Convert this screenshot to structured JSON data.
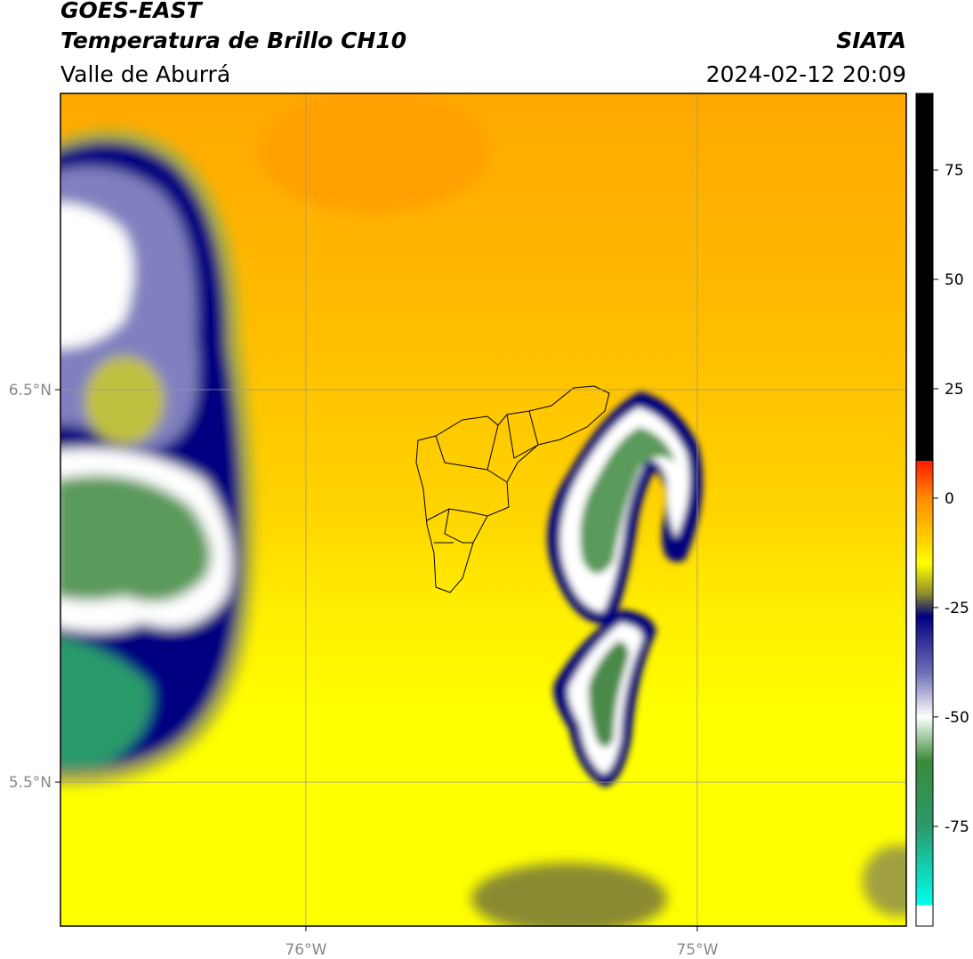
{
  "header": {
    "title": "GOES-EAST",
    "subtitle": "Temperatura de Brillo CH10",
    "source": "SIATA",
    "region": "Valle de Aburrá",
    "datetime": "2024-02-12 20:09"
  },
  "map": {
    "xlim": [
      -76.627,
      -74.466
    ],
    "ylim": [
      5.133,
      7.255
    ],
    "xticks": [
      {
        "value": -76,
        "label": "76°W"
      },
      {
        "value": -75,
        "label": "75°W"
      }
    ],
    "yticks": [
      {
        "value": 6.5,
        "label": "6.5°N"
      },
      {
        "value": 5.5,
        "label": "5.5°N"
      }
    ],
    "grid": true,
    "grid_color": "#999999"
  },
  "colorbar": {
    "lim": [
      -97.8,
      92.5
    ],
    "ticks": [
      75,
      50,
      25,
      0,
      -25,
      -50,
      -75
    ],
    "colormap": [
      {
        "value": 92.5,
        "color": "#000000"
      },
      {
        "value": 8.5,
        "color": "#000000"
      },
      {
        "value": 8.5,
        "color": "#ff1a00"
      },
      {
        "value": 0,
        "color": "#ff8c00"
      },
      {
        "value": -10,
        "color": "#ffd400"
      },
      {
        "value": -15,
        "color": "#ffff00"
      },
      {
        "value": -22,
        "color": "#8a8a30"
      },
      {
        "value": -27,
        "color": "#000080"
      },
      {
        "value": -40,
        "color": "#7070b8"
      },
      {
        "value": -50,
        "color": "#ffffff"
      },
      {
        "value": -60,
        "color": "#3a8a3a"
      },
      {
        "value": -75,
        "color": "#2a9a6a"
      },
      {
        "value": -93,
        "color": "#00ffee"
      },
      {
        "value": -93,
        "color": "#ffffff"
      },
      {
        "value": -97.8,
        "color": "#ffffff"
      }
    ]
  }
}
